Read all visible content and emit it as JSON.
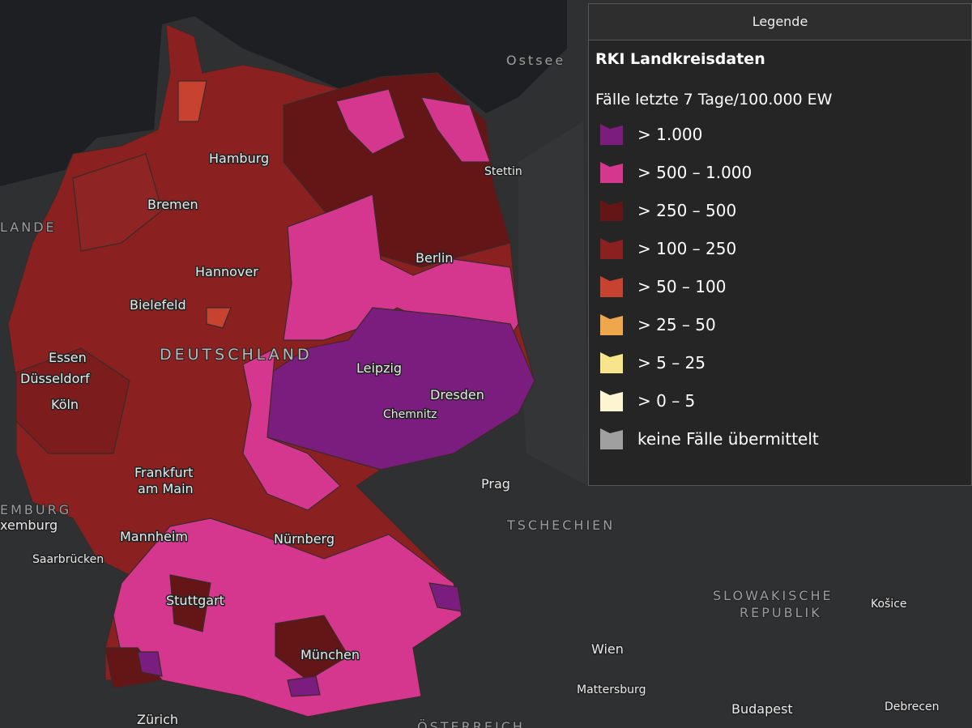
{
  "legend": {
    "header": "Legende",
    "title": "RKI Landkreisdaten",
    "subtitle": "Fälle letzte 7 Tage/100.000 EW",
    "items": [
      {
        "label": "> 1.000",
        "color": "#7b1d7e"
      },
      {
        "label": "> 500 – 1.000",
        "color": "#d6378e"
      },
      {
        "label": "> 250 – 500",
        "color": "#641616"
      },
      {
        "label": "> 100 – 250",
        "color": "#8b2020"
      },
      {
        "label": "> 50 – 100",
        "color": "#c8432f"
      },
      {
        "label": "> 25 – 50",
        "color": "#f0a64c"
      },
      {
        "label": "> 5 – 25",
        "color": "#f7e48b"
      },
      {
        "label": "> 0 – 5",
        "color": "#fdf4d2"
      },
      {
        "label": "keine Fälle übermittelt",
        "color": "#a0a0a0"
      }
    ]
  },
  "map_labels": {
    "cities": [
      "Hamburg",
      "Bremen",
      "Berlin",
      "Hannover",
      "Bielefeld",
      "Leipzig",
      "Essen",
      "Düsseldorf",
      "Dresden",
      "Köln",
      "Chemnitz",
      "Prag",
      "Frankfurt",
      "am Main",
      "Mannheim",
      "Nürnberg",
      "Saarbrücken",
      "Stuttgart",
      "München",
      "Wien",
      "Mattersburg",
      "Budapest",
      "Zürich",
      "Stettin",
      "Košice",
      "Debrecen",
      "xemburg"
    ],
    "areas": [
      "Ostsee",
      "DEUTSCHLAND",
      "TSCHECHIEN",
      "SLOWAKISCHE",
      "REPUBLIK",
      "LANDE",
      "EMBURG",
      "ÖSTERREICH"
    ]
  }
}
